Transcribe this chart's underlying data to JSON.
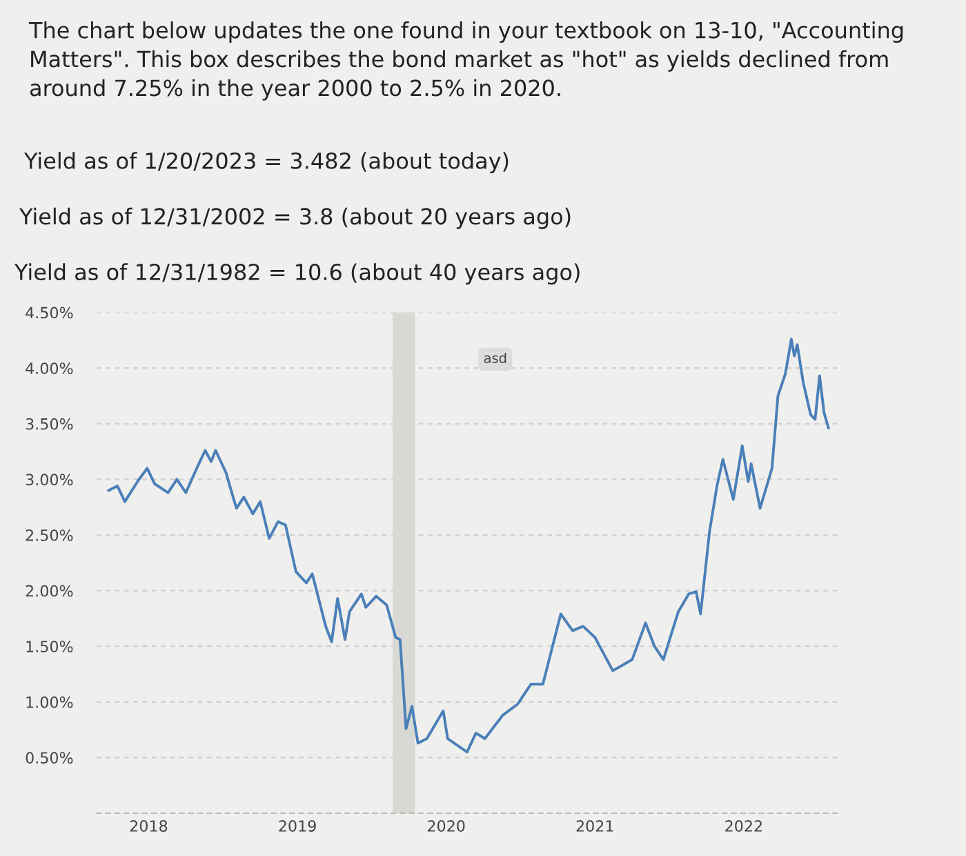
{
  "chart_data": {
    "type": "line",
    "title": "The chart below updates the one found in your textbook on 13-10, \"Accounting Matters\". This box describes the bond market as \"hot\" as yields declined from around 7.25% in the year 2000 to 2.5% in 2020.",
    "annotations": [
      "Yield as of 1/20/2023 = 3.482 (about today)",
      "Yield as of 12/31/2002 = 3.8 (about 20 years ago)",
      "Yield as of 12/31/1982 = 10.6 (about 40 years ago)",
      {
        "text": "asd",
        "x": 2020.83,
        "y": 4.08
      }
    ],
    "series": [
      {
        "color": "#4a7fb8",
        "x": [
          2018.23,
          2018.29,
          2018.34,
          2018.43,
          2018.49,
          2018.54,
          2018.63,
          2018.69,
          2018.75,
          2018.83,
          2018.88,
          2018.92,
          2018.95,
          2019.02,
          2019.05,
          2019.09,
          2019.14,
          2019.2,
          2019.25,
          2019.31,
          2019.37,
          2019.42,
          2019.49,
          2019.56,
          2019.6,
          2019.69,
          2019.73,
          2019.77,
          2019.82,
          2019.85,
          2019.93,
          2019.96,
          2020.03,
          2020.1,
          2020.16,
          2020.19,
          2020.23,
          2020.27,
          2020.31,
          2020.37,
          2020.48,
          2020.51,
          2020.64,
          2020.7,
          2020.76,
          2020.88,
          2020.98,
          2021.07,
          2021.15,
          2021.27,
          2021.35,
          2021.42,
          2021.5,
          2021.62,
          2021.75,
          2021.84,
          2021.9,
          2021.96,
          2022.06,
          2022.13,
          2022.18,
          2022.21,
          2022.27,
          2022.32,
          2022.36,
          2022.43,
          2022.49,
          2022.53,
          2022.55,
          2022.61,
          2022.69,
          2022.73,
          2022.78,
          2022.82,
          2022.84,
          2022.86,
          2022.9,
          2022.95,
          2022.98,
          2023.01,
          2023.04,
          2023.07
        ],
        "values": [
          2.9,
          2.94,
          2.8,
          2.99,
          3.1,
          2.96,
          2.88,
          3.0,
          2.88,
          3.12,
          3.26,
          3.16,
          3.26,
          3.06,
          2.92,
          2.74,
          2.84,
          2.69,
          2.8,
          2.47,
          2.62,
          2.59,
          2.17,
          2.07,
          2.15,
          1.68,
          1.54,
          1.93,
          1.56,
          1.81,
          1.97,
          1.85,
          1.95,
          1.87,
          1.58,
          1.56,
          0.76,
          0.96,
          0.63,
          0.67,
          0.92,
          0.67,
          0.55,
          0.72,
          0.67,
          0.88,
          0.98,
          1.16,
          1.16,
          1.79,
          1.64,
          1.68,
          1.58,
          1.28,
          1.38,
          1.71,
          1.5,
          1.38,
          1.81,
          1.97,
          1.99,
          1.79,
          2.53,
          2.94,
          3.18,
          2.82,
          3.3,
          2.98,
          3.14,
          2.74,
          3.1,
          3.75,
          3.95,
          4.26,
          4.11,
          4.21,
          3.87,
          3.58,
          3.54,
          3.93,
          3.6,
          3.46
        ]
      }
    ],
    "xlim": [
      2018.15,
      2023.15
    ],
    "xticks": [
      {
        "value": 2018.5,
        "label": "2018"
      },
      {
        "value": 2019.5,
        "label": "2019"
      },
      {
        "value": 2020.5,
        "label": "2020"
      },
      {
        "value": 2021.5,
        "label": "2021"
      },
      {
        "value": 2022.5,
        "label": "2022"
      }
    ],
    "ylim": [
      0,
      4.5
    ],
    "yticks": [
      {
        "value": 0,
        "label": null
      },
      {
        "value": 0.5,
        "label": "0.50%"
      },
      {
        "value": 1,
        "label": "1.00%"
      },
      {
        "value": 1.5,
        "label": "1.50%"
      },
      {
        "value": 2,
        "label": "2.00%"
      },
      {
        "value": 2.5,
        "label": "2.50%"
      },
      {
        "value": 3,
        "label": "3.00%"
      },
      {
        "value": 3.5,
        "label": "3.50%"
      },
      {
        "value": 4,
        "label": "4.00%"
      },
      {
        "value": 4.5,
        "label": "4.50%"
      }
    ],
    "bands": [
      {
        "axis": "x",
        "from": 2020.14,
        "to": 2020.29,
        "color": "#d8d8d4"
      }
    ],
    "grid": "y",
    "line_style": "solid",
    "marker": "none"
  }
}
